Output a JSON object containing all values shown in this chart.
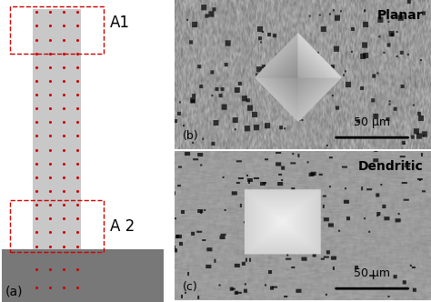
{
  "fig_width": 4.74,
  "fig_height": 3.32,
  "dpi": 100,
  "bg_color": "#ffffff",
  "panel_a": {
    "column_color": "#c8c8c8",
    "base_color": "#787878",
    "dot_color": "#cc0000",
    "dot_size": 2.2,
    "n_cols_dot": 4,
    "n_rows_col": 18,
    "label_a": "(a)",
    "label_a1": "A1",
    "label_a2": "A 2"
  },
  "panel_b": {
    "label": "(b)",
    "text": "Planar",
    "scalebar_text": "50 μm"
  },
  "panel_c": {
    "label": "(c)",
    "text": "Dendritic",
    "scalebar_text": "50 μm"
  }
}
